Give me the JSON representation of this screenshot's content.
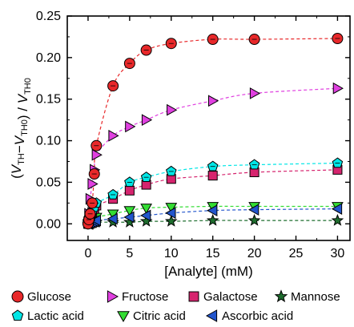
{
  "chart_data": {
    "type": "scatter",
    "xlabel": "[Analyte] (mM)",
    "ylabel": "(V_TH−V_TH0) / V_TH0",
    "xlim": [
      -2.5,
      31.5
    ],
    "ylim": [
      -0.02,
      0.25
    ],
    "x_ticks": [
      0,
      5,
      10,
      15,
      20,
      25,
      30
    ],
    "y_ticks": [
      0.0,
      0.05,
      0.1,
      0.15,
      0.2,
      0.25
    ],
    "y_tick_labels": [
      "0.00",
      "0.05",
      "0.10",
      "0.15",
      "0.20",
      "0.25"
    ],
    "grid": false,
    "legend_position": "bottom",
    "x": [
      0,
      0.1,
      0.25,
      0.5,
      0.75,
      1,
      3,
      5,
      7,
      10,
      15,
      20,
      30
    ],
    "series": [
      {
        "name": "Glucose",
        "marker": "circle",
        "color": "#e8282a",
        "line_color": "#e8282a",
        "values": [
          0.0,
          0.005,
          0.012,
          0.025,
          0.06,
          0.094,
          0.166,
          0.193,
          0.209,
          0.217,
          0.222,
          0.222,
          0.223
        ]
      },
      {
        "name": "Fructose",
        "marker": "triangle-right",
        "color": "#e040e0",
        "line_color": "#e040e0",
        "values": [
          0.002,
          0.012,
          0.03,
          0.048,
          0.065,
          0.083,
          0.106,
          0.117,
          0.125,
          0.137,
          0.148,
          0.157,
          0.163
        ]
      },
      {
        "name": "Galactose",
        "marker": "square",
        "color": "#d6246e",
        "line_color": "#d6246e",
        "values": [
          0.0,
          0.004,
          0.009,
          0.014,
          0.018,
          0.022,
          0.03,
          0.04,
          0.047,
          0.054,
          0.058,
          0.062,
          0.065
        ]
      },
      {
        "name": "Mannose",
        "marker": "star",
        "color": "#1e6e2e",
        "line_color": "#1e6e2e",
        "values": [
          0.0,
          0.0,
          0.001,
          0.001,
          0.002,
          0.002,
          0.002,
          0.002,
          0.003,
          0.003,
          0.004,
          0.004,
          0.004
        ]
      },
      {
        "name": "Lactic acid",
        "marker": "pentagon",
        "color": "#00e6e6",
        "line_color": "#00e6e6",
        "values": [
          0.0,
          0.003,
          0.008,
          0.014,
          0.02,
          0.025,
          0.035,
          0.05,
          0.056,
          0.063,
          0.069,
          0.071,
          0.073
        ]
      },
      {
        "name": "Citric acid",
        "marker": "triangle-down",
        "color": "#33dd33",
        "line_color": "#33dd33",
        "values": [
          0.0,
          0.001,
          0.003,
          0.005,
          0.007,
          0.008,
          0.012,
          0.016,
          0.019,
          0.02,
          0.021,
          0.021,
          0.021
        ]
      },
      {
        "name": "Ascorbic acid",
        "marker": "triangle-left",
        "color": "#2255cc",
        "line_color": "#2255cc",
        "values": [
          0.0,
          0.0,
          0.001,
          0.002,
          0.003,
          0.004,
          0.006,
          0.008,
          0.01,
          0.013,
          0.016,
          0.017,
          0.018
        ]
      }
    ]
  }
}
